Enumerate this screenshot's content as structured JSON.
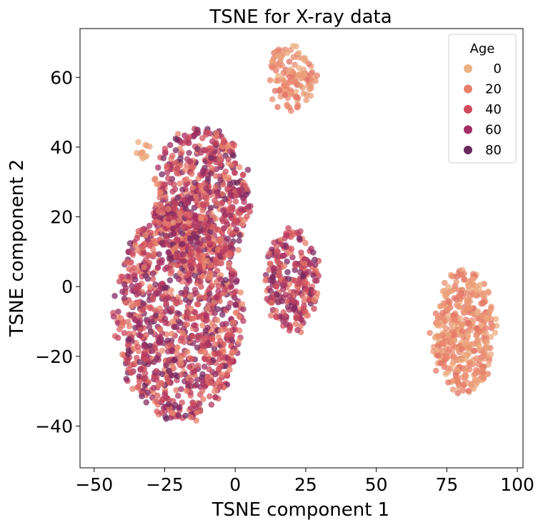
{
  "chart_data": {
    "type": "scatter",
    "title": "TSNE for X-ray data",
    "xlabel": "TSNE component 1",
    "ylabel": "TSNE component 2",
    "xlim": [
      -55,
      102
    ],
    "ylim": [
      -52,
      74
    ],
    "xticks": [
      {
        "value": -50,
        "label": "−50"
      },
      {
        "value": -25,
        "label": "−25"
      },
      {
        "value": 0,
        "label": "0"
      },
      {
        "value": 25,
        "label": "25"
      },
      {
        "value": 50,
        "label": "50"
      },
      {
        "value": 75,
        "label": "75"
      },
      {
        "value": 100,
        "label": "100"
      }
    ],
    "yticks": [
      {
        "value": -40,
        "label": "−40"
      },
      {
        "value": -20,
        "label": "−20"
      },
      {
        "value": 0,
        "label": "0"
      },
      {
        "value": 20,
        "label": "20"
      },
      {
        "value": 40,
        "label": "40"
      },
      {
        "value": 60,
        "label": "60"
      }
    ],
    "grid": false,
    "legend": {
      "title": "Age",
      "placement": "top-right",
      "entries": [
        {
          "label": "0",
          "color": "#EDB081"
        },
        {
          "label": "20",
          "color": "#E8806A"
        },
        {
          "label": "40",
          "color": "#CF4A5C"
        },
        {
          "label": "60",
          "color": "#A12D63"
        },
        {
          "label": "80",
          "color": "#6A285F"
        }
      ]
    },
    "color_scale": {
      "variable": "Age",
      "colormap": "flare",
      "range": [
        0,
        90
      ]
    },
    "point_opacity": 0.75,
    "clusters": [
      {
        "center": [
          -20,
          -8
        ],
        "spread": [
          14,
          19
        ],
        "age_range": [
          15,
          90
        ]
      },
      {
        "center": [
          -12,
          25
        ],
        "spread": [
          11,
          13
        ],
        "age_range": [
          15,
          90
        ]
      },
      {
        "center": [
          20,
          2
        ],
        "spread": [
          6,
          9
        ],
        "age_range": [
          20,
          90
        ]
      },
      {
        "center": [
          20,
          60
        ],
        "spread": [
          5,
          6
        ],
        "age_range": [
          0,
          30
        ]
      },
      {
        "center": [
          -33,
          39
        ],
        "spread": [
          1.5,
          1.5
        ],
        "age_range": [
          0,
          10
        ]
      },
      {
        "center": [
          81,
          -13
        ],
        "spread": [
          7,
          11
        ],
        "age_range": [
          0,
          30
        ]
      }
    ]
  }
}
